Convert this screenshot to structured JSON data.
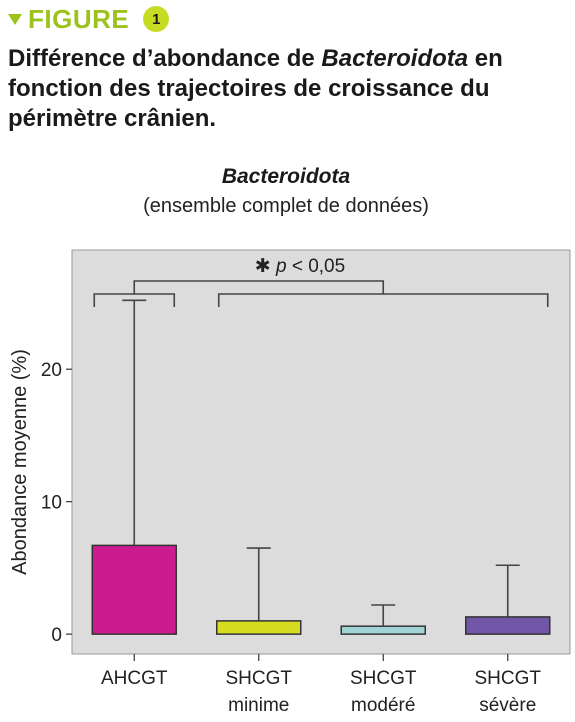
{
  "header": {
    "label": "FIGURE",
    "number": "1"
  },
  "title": {
    "part1": "Différence d’abondance de ",
    "italic": "Bacteroidota",
    "part2": " en fonction des trajectoires de croissance du périmètre crânien."
  },
  "chart_data": {
    "type": "box",
    "title": "Bacteroidota",
    "subtitle": "(ensemble complet de données)",
    "ylabel": "Abondance moyenne (%)",
    "ylim": [
      -1.5,
      29
    ],
    "yticks": [
      0,
      10,
      20
    ],
    "categories": [
      {
        "line1": "AHCGT",
        "line2": ""
      },
      {
        "line1": "SHCGT",
        "line2": "minime"
      },
      {
        "line1": "SHCGT",
        "line2": "modéré"
      },
      {
        "line1": "SHCGT",
        "line2": "sévère"
      }
    ],
    "boxes": [
      {
        "bottom": 0,
        "top": 6.7,
        "whisker_high": 25.2,
        "color": "#cc1a8f"
      },
      {
        "bottom": 0,
        "top": 1.0,
        "whisker_high": 6.5,
        "color": "#d5dc21"
      },
      {
        "bottom": 0,
        "top": 0.6,
        "whisker_high": 2.2,
        "color": "#9fd3d6"
      },
      {
        "bottom": 0,
        "top": 1.3,
        "whisker_high": 5.2,
        "color": "#7155a6"
      }
    ],
    "significance": {
      "symbol": "✱",
      "p": "p",
      "text": " < 0,05",
      "groups": [
        [
          0
        ],
        [
          1,
          2,
          3
        ]
      ]
    },
    "grid": false,
    "background": "#dcdcdc"
  }
}
